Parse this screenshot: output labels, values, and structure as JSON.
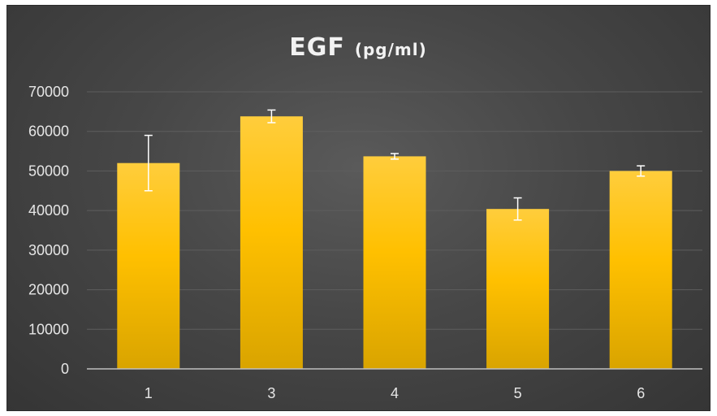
{
  "chart_data": {
    "type": "bar",
    "title": "EGF",
    "title_unit": "(pg/ml)",
    "categories": [
      "1",
      "3",
      "4",
      "5",
      "6"
    ],
    "values": [
      52000,
      63800,
      53700,
      40400,
      50000
    ],
    "error_bars": [
      7000,
      1600,
      700,
      2800,
      1300
    ],
    "ylim": [
      0,
      70000
    ],
    "yticks": [
      "0",
      "10000",
      "20000",
      "30000",
      "40000",
      "50000",
      "60000",
      "70000"
    ],
    "grid": true,
    "legend": "none",
    "colors": {
      "bar_top": "#ffcd3c",
      "bar_mid": "#ffc000",
      "bar_bottom": "#d9a400",
      "error_bar": "#ffffff",
      "background": "#474747",
      "gridline": "#5e5e5e",
      "axis": "#bfbfbf"
    }
  }
}
